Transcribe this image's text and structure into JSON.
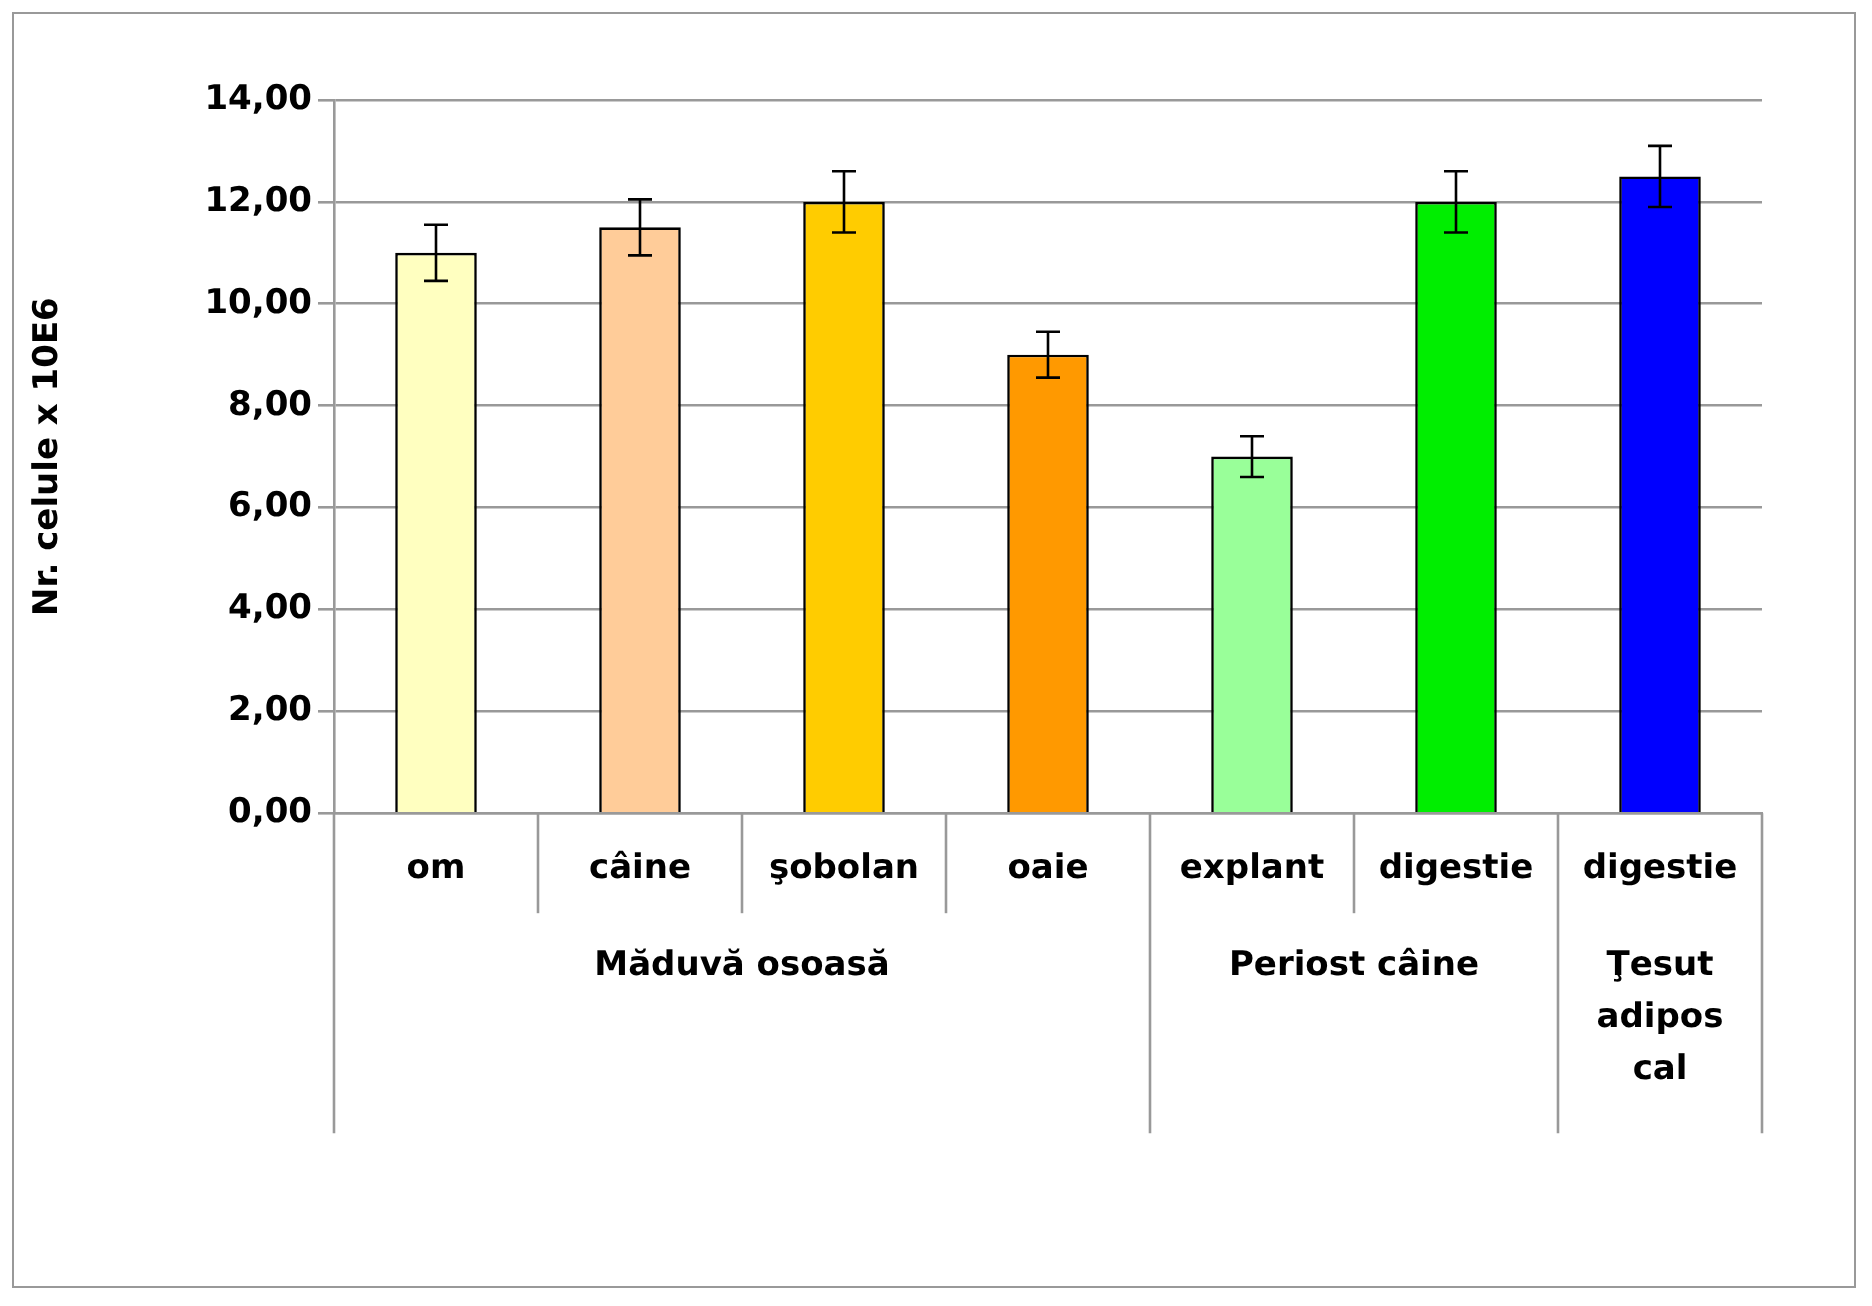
{
  "chart_data": {
    "type": "bar",
    "ylabel": "Nr. celule x 10E6",
    "categories": [
      "om",
      "câine",
      "şobolan",
      "oaie",
      "explant",
      "digestie",
      "digestie"
    ],
    "values": [
      11,
      11.5,
      12,
      9,
      7,
      12,
      12.5
    ],
    "errors": [
      0.55,
      0.55,
      0.6,
      0.45,
      0.4,
      0.6,
      0.6
    ],
    "colors": [
      "#ffffc0",
      "#ffcc99",
      "#ffcc00",
      "#ff9900",
      "#99ff99",
      "#00ee00",
      "#0000ff"
    ],
    "ylim": [
      0,
      14
    ],
    "yticks": [
      {
        "value": 0,
        "label": "0,00"
      },
      {
        "value": 2,
        "label": "2,00"
      },
      {
        "value": 4,
        "label": "4,00"
      },
      {
        "value": 6,
        "label": "6,00"
      },
      {
        "value": 8,
        "label": "8,00"
      },
      {
        "value": 10,
        "label": "10,00"
      },
      {
        "value": 12,
        "label": "12,00"
      },
      {
        "value": 14,
        "label": "14,00"
      }
    ],
    "grid": "y",
    "legend": false,
    "annotations": [
      "Măduvă osoasă",
      "Periost câine",
      "Ţesut adipos cal"
    ]
  }
}
